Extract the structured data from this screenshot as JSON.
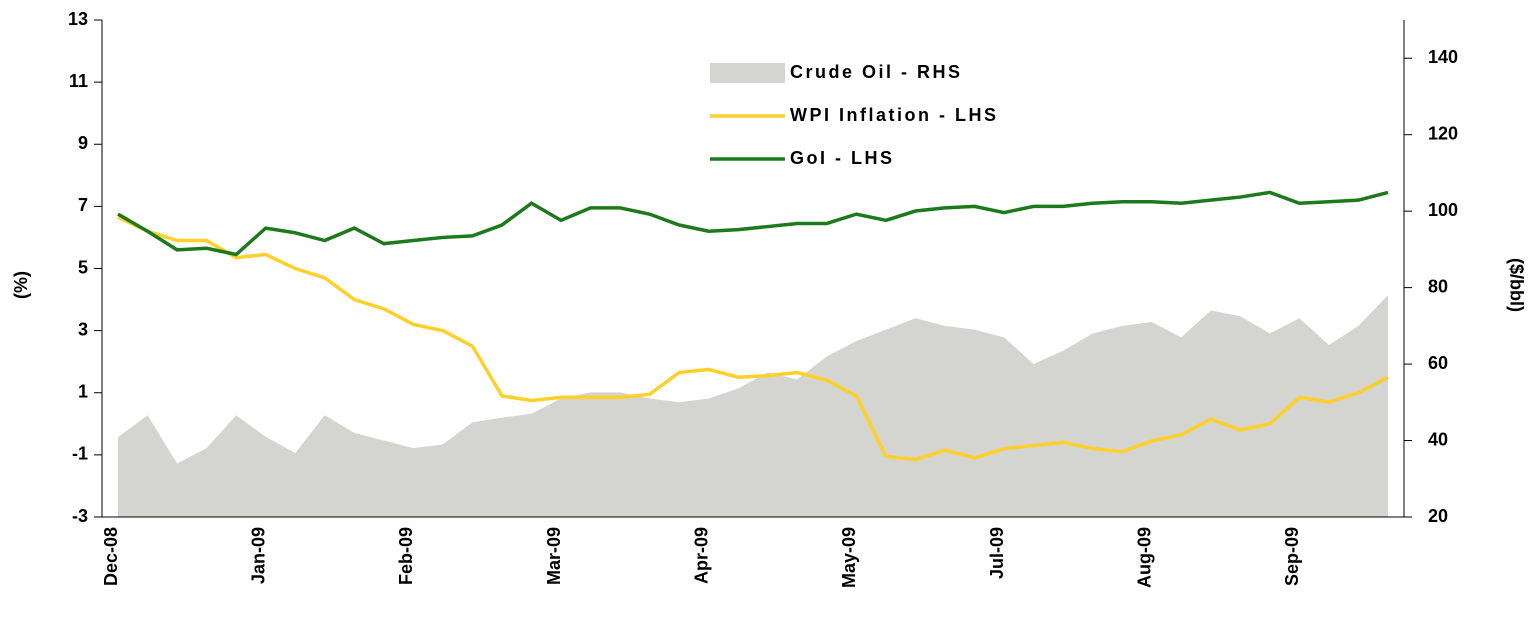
{
  "chart_data": {
    "type": "line",
    "categories": [
      "Dec-08",
      null,
      null,
      null,
      null,
      "Jan-09",
      null,
      null,
      null,
      null,
      "Feb-09",
      null,
      null,
      null,
      null,
      "Mar-09",
      null,
      null,
      null,
      null,
      "Apr-09",
      null,
      null,
      null,
      null,
      "May-09",
      null,
      null,
      null,
      null,
      "Jul-09",
      null,
      null,
      null,
      null,
      "Aug-09",
      null,
      null,
      null,
      null,
      "Sep-09",
      null,
      null,
      null
    ],
    "series": [
      {
        "name": "Crude Oil - RHS",
        "style": "area",
        "axis": "y2",
        "color": "#d4d4d0",
        "values": [
          40.9,
          46.6,
          34,
          38,
          46.6,
          41,
          36.7,
          46.6,
          42,
          40,
          38,
          39,
          44.8,
          46,
          47,
          51,
          52.6,
          52.6,
          51,
          50,
          51,
          53.6,
          57.8,
          56,
          62,
          66,
          69,
          72,
          70,
          69,
          67,
          60,
          63.5,
          68,
          70,
          71,
          67,
          74,
          72.5,
          68,
          72,
          65,
          70,
          78
        ]
      },
      {
        "name": "WPI Inflation - LHS",
        "style": "line",
        "color": "#ffd02a",
        "values": [
          6.65,
          6.2,
          5.9,
          5.9,
          5.35,
          5.45,
          5.0,
          4.7,
          4.0,
          3.7,
          3.2,
          3.0,
          2.5,
          0.9,
          0.75,
          0.85,
          0.85,
          0.85,
          0.95,
          1.65,
          1.75,
          1.5,
          1.55,
          1.65,
          1.4,
          0.9,
          -1.05,
          -1.15,
          -0.85,
          -1.1,
          -0.8,
          -0.7,
          -0.6,
          -0.8,
          -0.9,
          -0.55,
          -0.35,
          0.15,
          -0.2,
          0.0,
          0.85,
          0.7,
          1.0,
          1.5
        ]
      },
      {
        "name": "GoI - LHS",
        "style": "line",
        "color": "#1c7a1c",
        "values": [
          6.75,
          6.2,
          5.6,
          5.65,
          5.45,
          6.3,
          6.15,
          5.9,
          6.3,
          5.8,
          5.9,
          6.0,
          6.05,
          6.4,
          7.1,
          6.55,
          6.95,
          6.95,
          6.75,
          6.4,
          6.2,
          6.25,
          6.35,
          6.45,
          6.45,
          6.75,
          6.55,
          6.85,
          6.95,
          7.0,
          6.8,
          7.0,
          7.0,
          7.1,
          7.15,
          7.15,
          7.1,
          7.2,
          7.3,
          7.45,
          7.1,
          7.15,
          7.2,
          7.45
        ]
      }
    ],
    "y_label": "(%)",
    "y2_label": "($/bbl)",
    "ylim": [
      -3,
      13
    ],
    "yticks": [
      -3,
      -1,
      1,
      3,
      5,
      7,
      9,
      11,
      13
    ],
    "y2lim": [
      20,
      150
    ],
    "y2ticks": [
      20,
      40,
      60,
      80,
      100,
      120,
      140
    ],
    "legend": "upper center",
    "grid": false
  }
}
